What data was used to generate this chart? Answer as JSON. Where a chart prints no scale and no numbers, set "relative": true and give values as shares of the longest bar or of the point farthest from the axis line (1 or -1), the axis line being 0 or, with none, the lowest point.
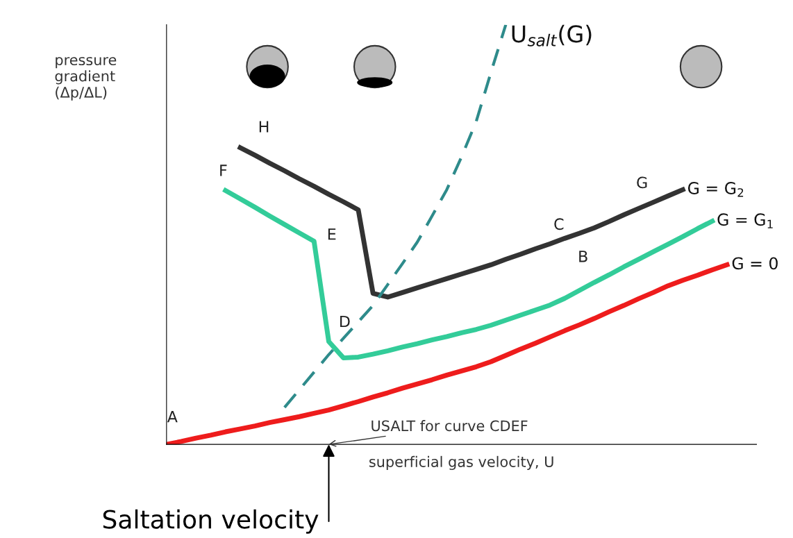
{
  "chart_data": {
    "type": "line",
    "relative": true,
    "xlabel": "superficial gas velocity, U",
    "ylabel": "pressure\ngradient\n(Δp/ΔL)",
    "tick_labels": false,
    "categories": [
      null,
      null,
      null,
      null,
      null,
      null,
      null,
      null,
      null,
      null,
      null,
      null,
      null,
      null,
      null,
      null,
      null,
      null,
      null,
      null,
      null,
      null,
      null,
      null,
      null,
      null,
      null,
      null,
      null,
      null,
      null,
      null,
      null,
      null,
      null,
      null,
      null,
      null,
      null,
      null,
      null
    ],
    "series": [
      {
        "name": "G = 0",
        "color": "#ee1c1c",
        "values": [
          0,
          0.007,
          0.015,
          0.022,
          0.03,
          0.037,
          0.044,
          0.052,
          0.059,
          0.066,
          0.074,
          0.082,
          0.092,
          0.102,
          0.113,
          0.123,
          0.134,
          0.144,
          0.154,
          0.165,
          0.175,
          0.185,
          0.197,
          0.212,
          0.227,
          0.241,
          0.256,
          0.271,
          0.285,
          0.3,
          0.316,
          0.331,
          0.347,
          0.362,
          0.378,
          0.391,
          0.403,
          0.416,
          0.428,
          null,
          null
        ]
      },
      {
        "name": "G = G$_{1}$",
        "color": "#33cc99",
        "values": [
          null,
          null,
          null,
          null,
          0.605,
          0.585,
          0.565,
          0.544,
          0.524,
          0.504,
          0.484,
          0.245,
          0.206,
          0.208,
          0.215,
          0.223,
          0.232,
          0.24,
          0.249,
          0.257,
          0.266,
          0.274,
          0.284,
          0.296,
          0.308,
          0.32,
          0.332,
          0.348,
          0.367,
          0.386,
          0.404,
          0.423,
          0.441,
          0.459,
          0.477,
          0.495,
          0.514,
          0.532,
          null,
          null,
          null
        ]
      },
      {
        "name": "G = G$_{2}$",
        "color": "#333333",
        "values": [
          null,
          null,
          null,
          null,
          null,
          0.707,
          0.689,
          0.67,
          0.652,
          0.633,
          0.615,
          0.596,
          0.578,
          0.559,
          0.36,
          0.351,
          0.362,
          0.373,
          0.384,
          0.395,
          0.406,
          0.417,
          0.428,
          0.441,
          0.453,
          0.466,
          0.478,
          0.491,
          0.503,
          0.516,
          0.531,
          0.547,
          0.562,
          0.577,
          0.592,
          0.607,
          null,
          null,
          null,
          null,
          null
        ]
      },
      {
        "name": "U$_{salt}$(G)",
        "color": "#2e8b8b",
        "line_style": "dashed",
        "values": [
          null,
          null,
          null,
          null,
          null,
          null,
          null,
          null,
          0.088,
          0.13,
          0.172,
          0.214,
          0.253,
          0.292,
          0.331,
          0.381,
          0.431,
          0.482,
          0.544,
          0.607,
          0.685,
          0.77,
          0.887,
          1.0,
          null,
          null,
          null,
          null,
          null,
          null,
          null,
          null,
          null,
          null,
          null,
          null,
          null,
          null,
          null,
          null,
          null
        ]
      }
    ],
    "annotations": [
      "A",
      "B",
      "C",
      "D",
      "E",
      "F",
      "G",
      "H",
      "USALT for curve CDEF",
      "Saltation velocity"
    ]
  }
}
